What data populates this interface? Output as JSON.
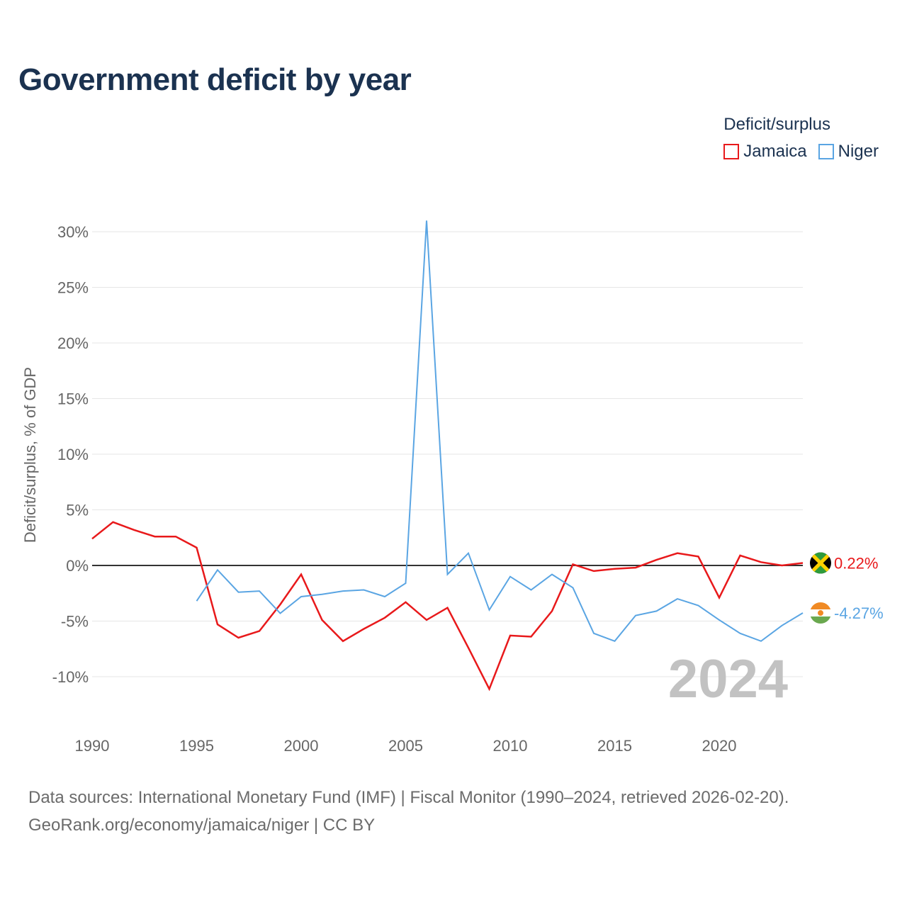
{
  "title": "Government deficit by year",
  "legend": {
    "title": "Deficit/surplus",
    "items": [
      {
        "label": "Jamaica",
        "color": "#e8191b"
      },
      {
        "label": "Niger",
        "color": "#5aa5e3"
      }
    ]
  },
  "source": {
    "line1": "Data sources: International Monetary Fund (IMF) | Fiscal Monitor (1990–2024, retrieved 2026-02-20).",
    "line2": "GeoRank.org/economy/jamaica/niger | CC BY"
  },
  "chart_data": {
    "type": "line",
    "title": "Government deficit by year",
    "xlabel": "",
    "ylabel": "Deficit/surplus, % of GDP",
    "xlim": [
      1990,
      2024
    ],
    "ylim": [
      -13,
      32
    ],
    "x_ticks": [
      1990,
      1995,
      2000,
      2005,
      2010,
      2015,
      2020
    ],
    "x_tick_labels": [
      "1990",
      "1995",
      "2000",
      "2005",
      "2010",
      "2015",
      "2020"
    ],
    "y_ticks": [
      30,
      25,
      20,
      15,
      10,
      5,
      0,
      -5,
      -10
    ],
    "y_tick_labels": [
      "30%",
      "25%",
      "20%",
      "15%",
      "10%",
      "5%",
      "0%",
      "-5%",
      "-10%"
    ],
    "year_watermark": "2024",
    "series": [
      {
        "name": "Jamaica",
        "color": "#e8191b",
        "end_label": "0.22%",
        "flag": "jamaica",
        "x": [
          1990,
          1991,
          1992,
          1993,
          1994,
          1995,
          1996,
          1997,
          1998,
          1999,
          2000,
          2001,
          2002,
          2003,
          2004,
          2005,
          2006,
          2007,
          2008,
          2009,
          2010,
          2011,
          2012,
          2013,
          2014,
          2015,
          2016,
          2017,
          2018,
          2019,
          2020,
          2021,
          2022,
          2023,
          2024
        ],
        "values": [
          2.4,
          3.9,
          3.2,
          2.6,
          2.6,
          1.6,
          -5.3,
          -6.5,
          -5.9,
          -3.5,
          -0.8,
          -4.9,
          -6.8,
          -5.7,
          -4.7,
          -3.3,
          -4.9,
          -3.8,
          -7.4,
          -11.1,
          -6.3,
          -6.4,
          -4.1,
          0.1,
          -0.5,
          -0.3,
          -0.2,
          0.5,
          1.1,
          0.8,
          -2.9,
          0.9,
          0.3,
          0.0,
          0.22
        ]
      },
      {
        "name": "Niger",
        "color": "#5aa5e3",
        "end_label": "-4.27%",
        "flag": "niger",
        "x": [
          1995,
          1996,
          1997,
          1998,
          1999,
          2000,
          2001,
          2002,
          2003,
          2004,
          2005,
          2006,
          2007,
          2008,
          2009,
          2010,
          2011,
          2012,
          2013,
          2014,
          2015,
          2016,
          2017,
          2018,
          2019,
          2020,
          2021,
          2022,
          2023,
          2024
        ],
        "values": [
          -3.2,
          -0.4,
          -2.4,
          -2.3,
          -4.3,
          -2.8,
          -2.6,
          -2.3,
          -2.2,
          -2.8,
          -1.6,
          31.0,
          -0.8,
          1.1,
          -4.0,
          -1.0,
          -2.2,
          -0.8,
          -2.0,
          -6.1,
          -6.8,
          -4.5,
          -4.1,
          -3.0,
          -3.6,
          -4.9,
          -6.1,
          -6.8,
          -5.4,
          -4.27
        ]
      }
    ]
  }
}
